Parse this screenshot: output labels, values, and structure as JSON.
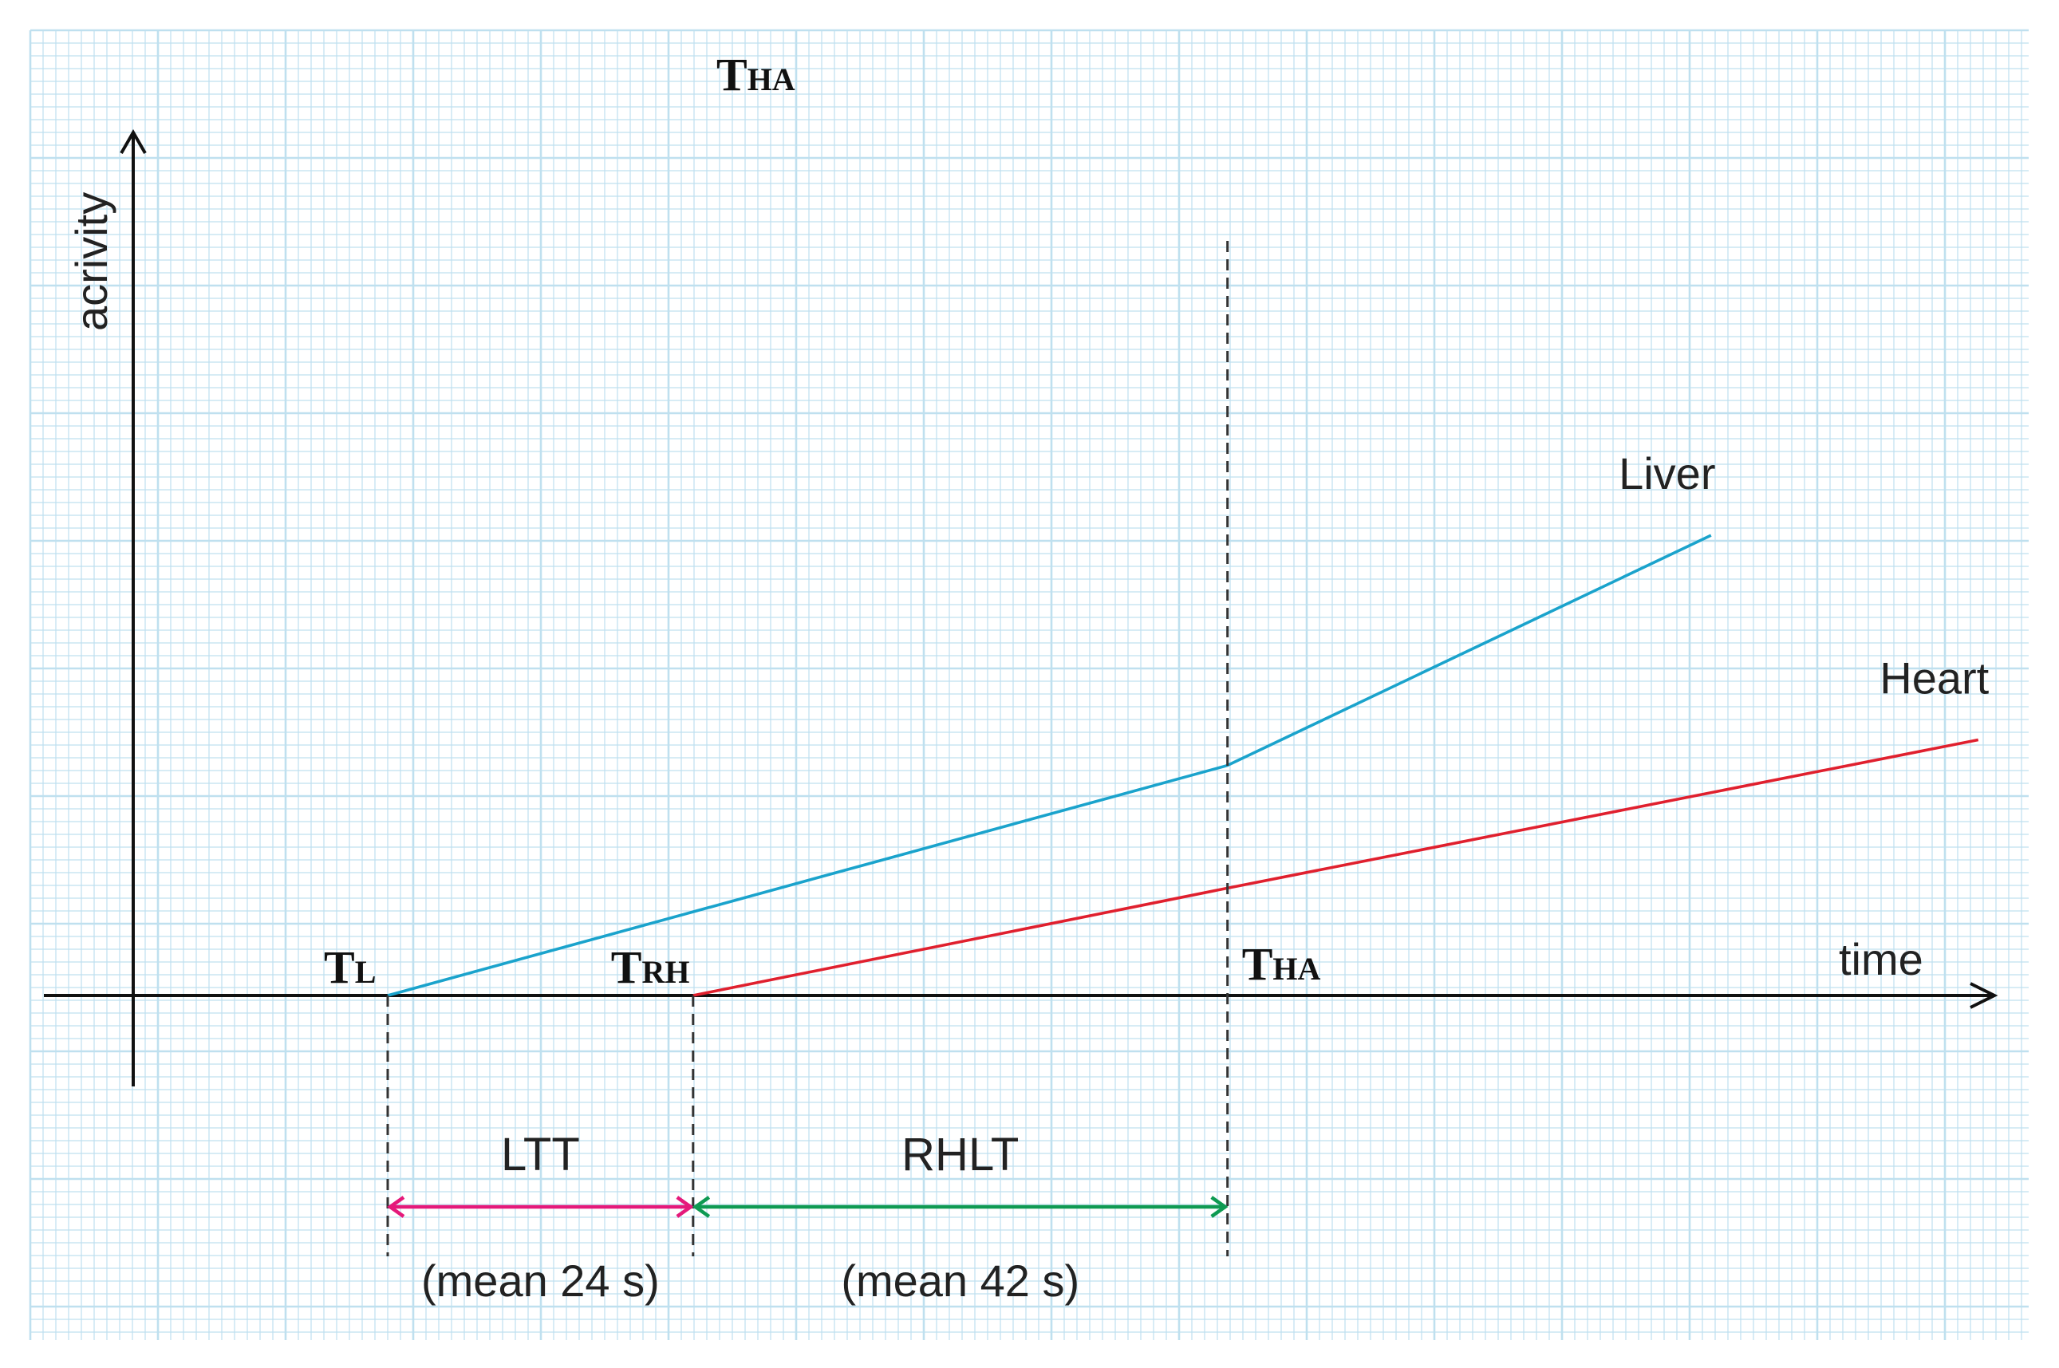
{
  "chart_data": {
    "type": "line",
    "title": "",
    "xlabel": "time",
    "ylabel": "acrivity",
    "top_marker": {
      "main": "T",
      "sub": "HA"
    },
    "series": [
      {
        "name": "Liver",
        "color": "#1aa3cc",
        "points": [
          [
            0,
            0
          ],
          [
            66,
            4.5
          ],
          [
            104,
            9.0
          ]
        ]
      },
      {
        "name": "Heart",
        "color": "#e0202e",
        "points": [
          [
            24,
            0
          ],
          [
            66,
            2.1
          ],
          [
            125,
            5.0
          ]
        ]
      }
    ],
    "time_markers": [
      {
        "key": "tl",
        "main": "T",
        "sub": "L",
        "x": 0
      },
      {
        "key": "trh",
        "main": "T",
        "sub": "RH",
        "x": 24
      },
      {
        "key": "tha",
        "main": "T",
        "sub": "HA",
        "x": 66
      }
    ],
    "intervals": [
      {
        "label": "LTT",
        "note": "(mean 24 s)",
        "from": 0,
        "to": 24,
        "color": "#e5197a"
      },
      {
        "label": "RHLT",
        "note": "(mean 42 s)",
        "from": 24,
        "to": 66,
        "color": "#0e9a52"
      }
    ],
    "xlim": [
      -20,
      127
    ],
    "ylim": [
      -1.1,
      10.9
    ],
    "grid": true,
    "grid_color": "#bfe0ef",
    "axis_color": "#111111"
  }
}
